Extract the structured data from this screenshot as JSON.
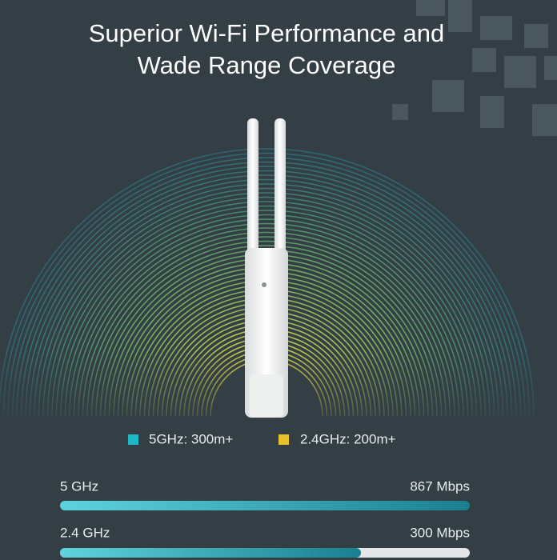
{
  "header": {
    "title_lines": [
      "Superior Wi-Fi Performance and",
      "Wade Range Coverage"
    ]
  },
  "legend": [
    {
      "label": "5GHz: 300m+",
      "color": "#1fb8c8"
    },
    {
      "label": "2.4GHz: 200m+",
      "color": "#e8c22a"
    }
  ],
  "speeds": [
    {
      "band": "5 GHz",
      "speed": "867 Mbps"
    },
    {
      "band": "2.4 GHz",
      "speed": "300 Mbps"
    }
  ]
}
